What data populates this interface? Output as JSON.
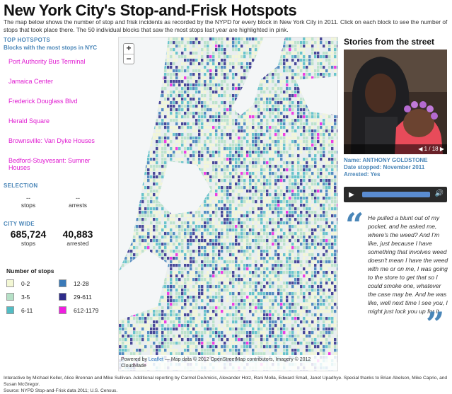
{
  "title": "New York City's Stop-and-Frisk Hotspots",
  "intro": "The map below shows the number of stop and frisk incidents as recorded by the NYPD for every block in New York City in 2011. Click on each block to see the number of stops that took place there. The 50 individual blocks that saw the most stops last year are highlighted in pink.",
  "top_hotspots": {
    "title": "TOP HOTSPOTS",
    "subtitle": "Blocks with the most stops in NYC",
    "items": [
      "Port Authority Bus Terminal",
      "Jamaica Center",
      "Frederick Douglass Blvd",
      "Herald Square",
      "Brownsville: Van Dyke Houses",
      "Bedford-Stuyvesant: Sumner Houses"
    ]
  },
  "selection": {
    "title": "SELECTION",
    "stops_value": "--",
    "stops_label": "stops",
    "arrests_value": "--",
    "arrests_label": "arrests"
  },
  "city_wide": {
    "title": "CITY WIDE",
    "stops_value": "685,724",
    "stops_label": "stops",
    "arrests_value": "40,883",
    "arrests_label": "arrested"
  },
  "legend": {
    "title": "Number of stops",
    "items": [
      {
        "label": "0-2",
        "color": "#f3f7d4"
      },
      {
        "label": "12-28",
        "color": "#3a7ab8"
      },
      {
        "label": "3-5",
        "color": "#b5e0c6"
      },
      {
        "label": "29-611",
        "color": "#2e2c8a"
      },
      {
        "label": "6-11",
        "color": "#52bcc4"
      },
      {
        "label": "612-1179",
        "color": "#f01ee0"
      }
    ]
  },
  "map": {
    "zoom_in": "+",
    "zoom_out": "−",
    "attribution_prefix": "Powered by ",
    "attribution_link": "Leaflet",
    "attribution_text": " — Map data © 2012 OpenStreetMap contributors, Imagery © 2012 CloudMade"
  },
  "stories": {
    "title": "Stories from the street",
    "counter": "1 / 18",
    "name": "Name: ANTHONY GOLDSTONE",
    "date_stopped": "Date stopped: November 2011",
    "arrested": "Arrested: Yes",
    "quote": "He pulled a blunt out of my pocket, and he asked me, where's the weed? And I'm like, just because I have something that involves weed doesn't mean I have the weed with me or on me, I was going to the store to get that so I could smoke one, whatever the case may be. And he was like, well next time I see you, I might just lock you up for it."
  },
  "credits": {
    "line1": "Interactive by Michael Keller, Alice Brennan and Mike Sullivan. Additional reporting by Carmel DeAmicis, Alexander Hotz, Rani Molla, Edward Small, Janet Upadhye. Special thanks to Brian Abelson, Mike Caprio, and Susan McGregor.",
    "line2": "Source: NYPD Stop-and-Frisk data 2011; U.S. Census."
  },
  "colors": {
    "accent": "#4a86b8",
    "hotspot_pink": "#e01bd1"
  }
}
